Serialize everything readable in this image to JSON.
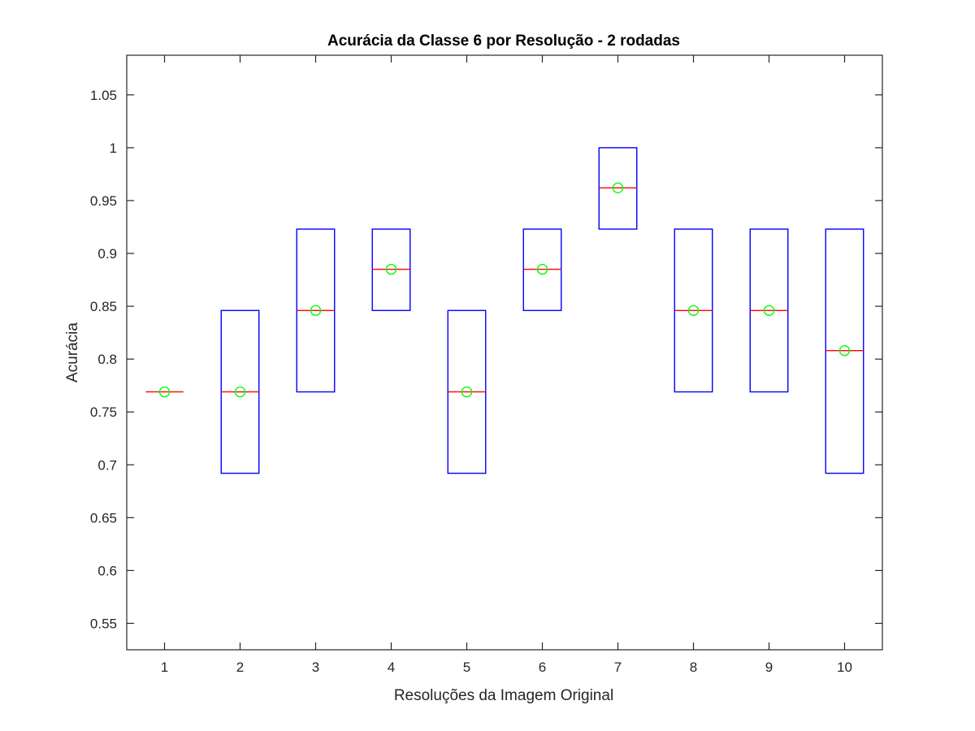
{
  "chart_data": {
    "type": "box",
    "title": "Acurácia da Classe 6 por Resolução - 2 rodadas",
    "xlabel": "Resoluções da Imagem Original",
    "ylabel": "Acurácia",
    "categories": [
      "1",
      "2",
      "3",
      "4",
      "5",
      "6",
      "7",
      "8",
      "9",
      "10"
    ],
    "ylim": [
      0.525,
      1.0875
    ],
    "yticks": [
      "0.55",
      "0.6",
      "0.65",
      "0.7",
      "0.75",
      "0.8",
      "0.85",
      "0.9",
      "0.95",
      "1",
      "1.05"
    ],
    "grid": false,
    "boxes": [
      {
        "category": "1",
        "q1": 0.769,
        "median": 0.769,
        "q3": 0.769,
        "mean": 0.769
      },
      {
        "category": "2",
        "q1": 0.692,
        "median": 0.769,
        "q3": 0.846,
        "mean": 0.769
      },
      {
        "category": "3",
        "q1": 0.769,
        "median": 0.846,
        "q3": 0.923,
        "mean": 0.846
      },
      {
        "category": "4",
        "q1": 0.846,
        "median": 0.885,
        "q3": 0.923,
        "mean": 0.885
      },
      {
        "category": "5",
        "q1": 0.692,
        "median": 0.769,
        "q3": 0.846,
        "mean": 0.769
      },
      {
        "category": "6",
        "q1": 0.846,
        "median": 0.885,
        "q3": 0.923,
        "mean": 0.885
      },
      {
        "category": "7",
        "q1": 0.923,
        "median": 0.962,
        "q3": 1.0,
        "mean": 0.962
      },
      {
        "category": "8",
        "q1": 0.769,
        "median": 0.846,
        "q3": 0.923,
        "mean": 0.846
      },
      {
        "category": "9",
        "q1": 0.769,
        "median": 0.846,
        "q3": 0.923,
        "mean": 0.846
      },
      {
        "category": "10",
        "q1": 0.692,
        "median": 0.808,
        "q3": 0.923,
        "mean": 0.808
      }
    ],
    "colors": {
      "box": "#0000ff",
      "median": "#ff0000",
      "mean_marker": "#00ff00",
      "axes": "#262626"
    }
  }
}
